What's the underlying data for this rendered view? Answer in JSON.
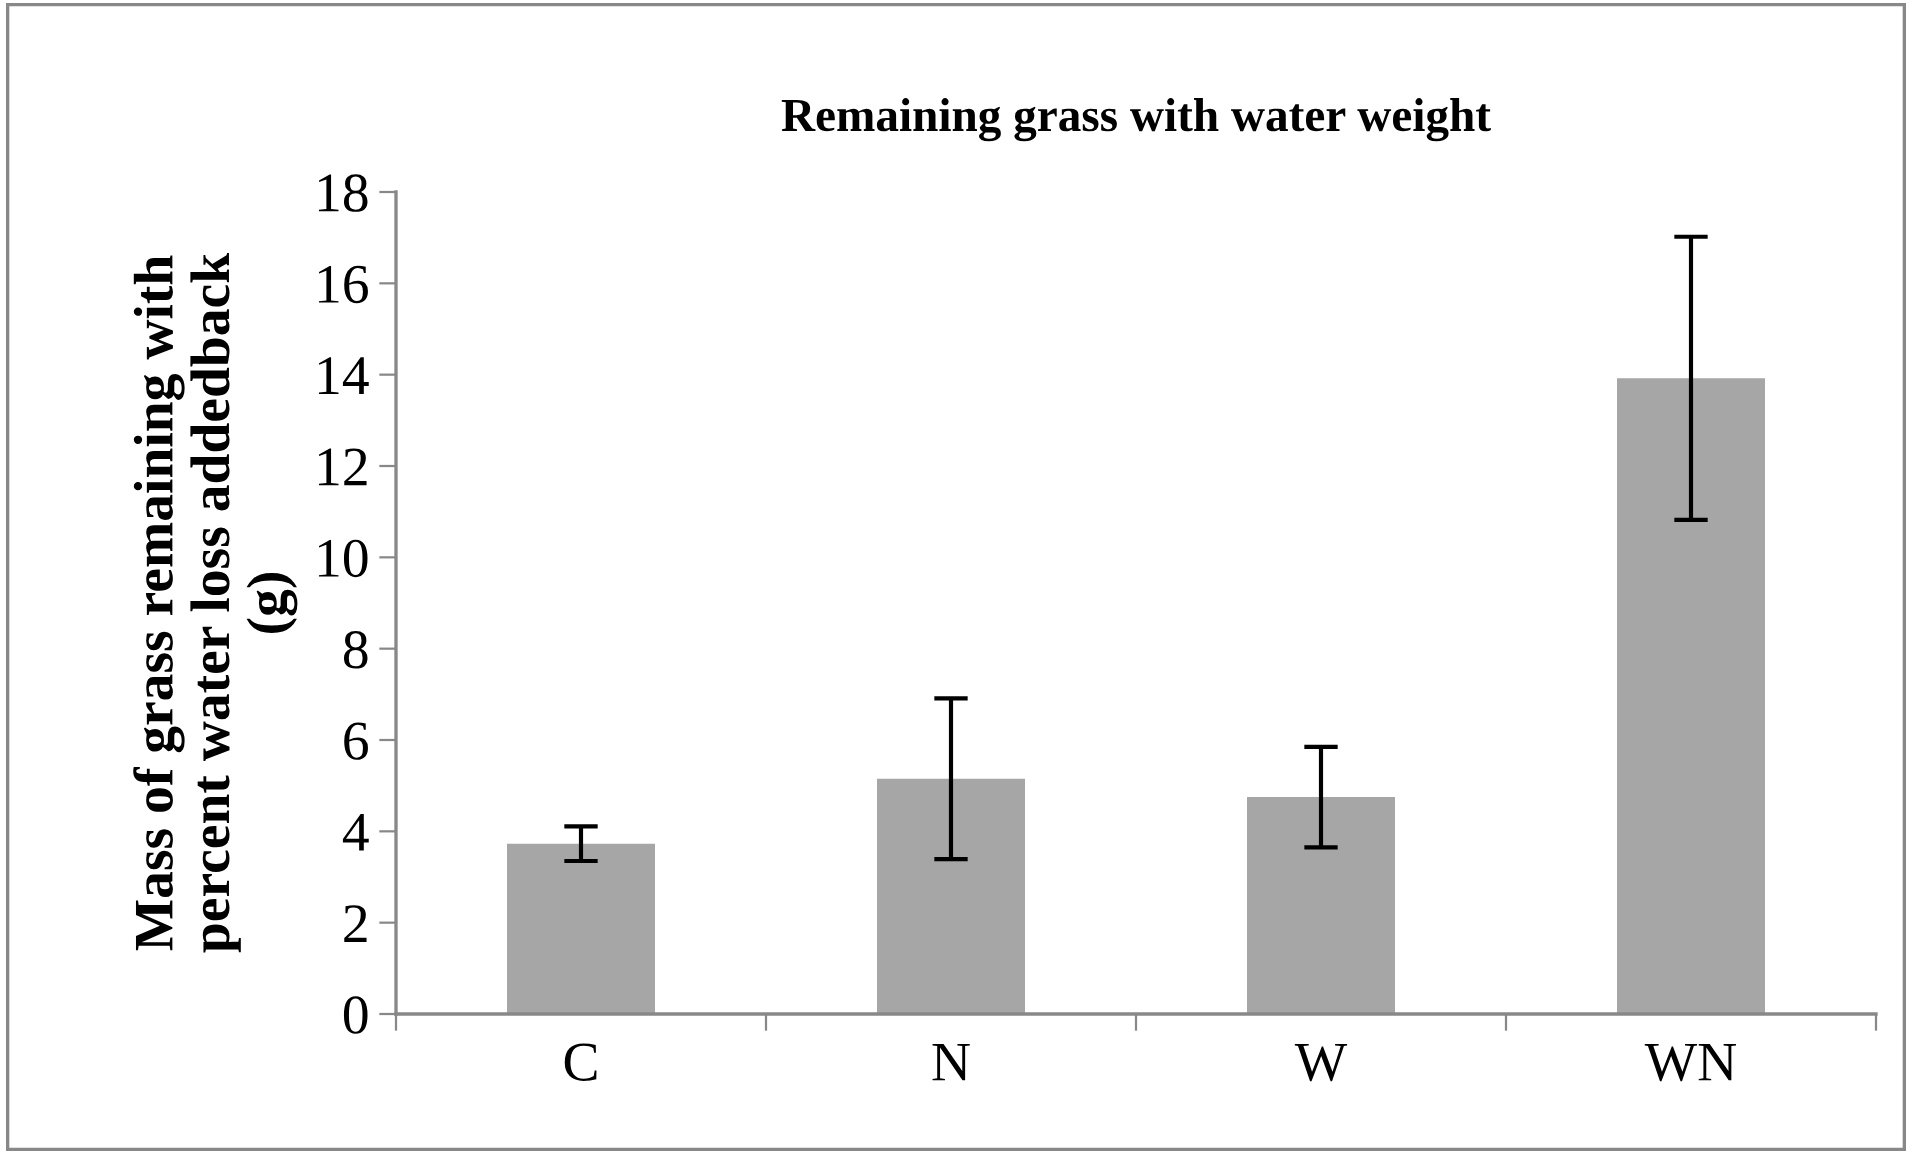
{
  "chart_data": {
    "type": "bar",
    "title": "Remaining grass with water weight",
    "ylabel": "Mass of grass remaining with\npercent water loss addedback\n(g)",
    "categories": [
      "C",
      "N",
      "W",
      "WN"
    ],
    "values": [
      3.73,
      5.15,
      4.75,
      13.92
    ],
    "errors": [
      0.38,
      1.76,
      1.1,
      3.1
    ],
    "color": "#a6a6a6",
    "ylim": [
      0,
      18
    ],
    "yticks": [
      0,
      2,
      4,
      6,
      8,
      10,
      12,
      14,
      16,
      18
    ],
    "grid": false,
    "legend": false
  }
}
